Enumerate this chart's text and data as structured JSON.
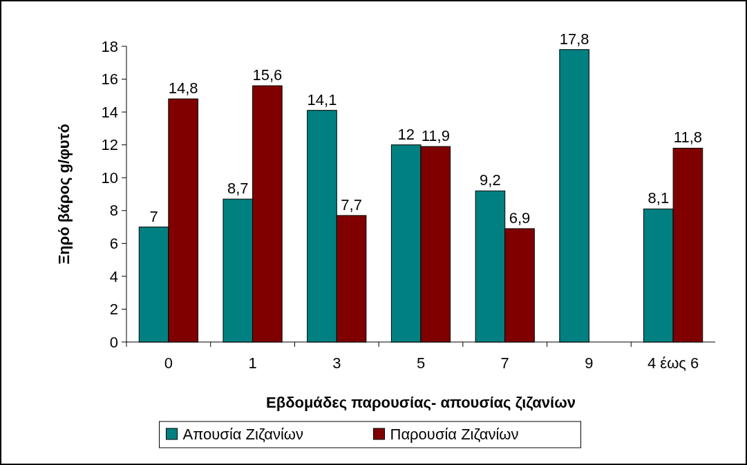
{
  "chart_data": {
    "type": "bar",
    "xlabel": "Εβδομάδες παρουσίας- απουσίας ζιζανίων",
    "ylabel": "Ξηρό βάρος g/φυτό",
    "categories": [
      "0",
      "1",
      "3",
      "5",
      "7",
      "9",
      "4 έως 6"
    ],
    "series": [
      {
        "name": "Απουσία Ζιζανίων",
        "color": "#008080",
        "values": [
          7,
          8.7,
          14.1,
          12,
          9.2,
          17.8,
          8.1
        ],
        "value_labels": [
          "7",
          "8,7",
          "14,1",
          "12",
          "9,2",
          "17,8",
          "8,1"
        ]
      },
      {
        "name": "Παρουσία Ζιζανίων",
        "color": "#800000",
        "values": [
          14.8,
          15.6,
          7.7,
          11.9,
          6.9,
          null,
          11.8
        ],
        "value_labels": [
          "14,8",
          "15,6",
          "7,7",
          "11,9",
          "6,9",
          null,
          "11,8"
        ]
      }
    ],
    "ylim": [
      0,
      18
    ],
    "yticks": [
      0,
      2,
      4,
      6,
      8,
      10,
      12,
      14,
      16,
      18
    ],
    "legend": "bottom",
    "grid": false
  }
}
